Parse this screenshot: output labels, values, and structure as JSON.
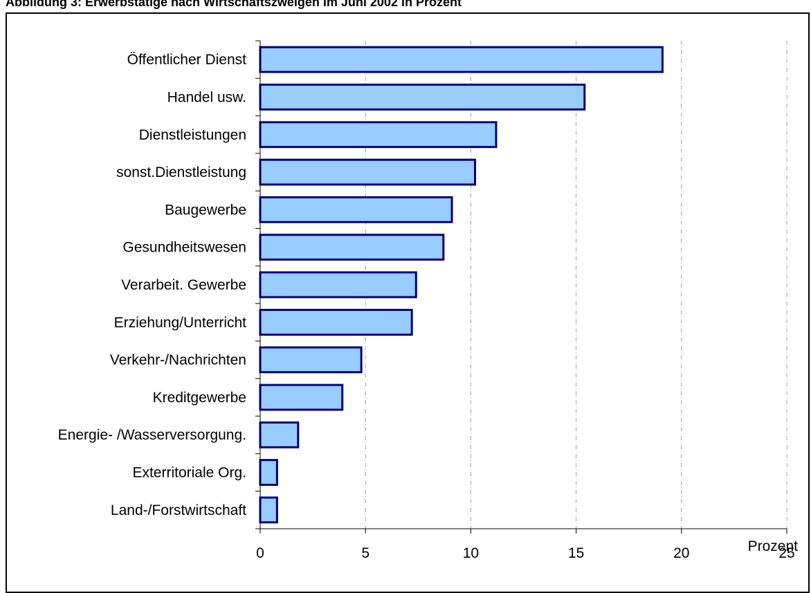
{
  "title": "Abbildung 3: Erwerbstätige nach Wirtschaftszweigen im Juni 2002 in Prozent",
  "chart_data": {
    "type": "bar",
    "orientation": "horizontal",
    "title": "Abbildung 3: Erwerbstätige nach Wirtschaftszweigen im Juni 2002 in Prozent",
    "xlabel": "Prozent",
    "ylabel": "",
    "categories": [
      "Öffentlicher Dienst",
      "Handel usw.",
      "Dienstleistungen",
      "sonst.Dienstleistung",
      "Baugewerbe",
      "Gesundheitswesen",
      "Verarbeit. Gewerbe",
      "Erziehung/Unterricht",
      "Verkehr-/Nachrichten",
      "Kreditgewerbe",
      "Energie- /Wasserversorgung.",
      "Exterritoriale Org.",
      "Land-/Forstwirtschaft"
    ],
    "values": [
      19.1,
      15.4,
      11.2,
      10.2,
      9.1,
      8.7,
      7.4,
      7.2,
      4.8,
      3.9,
      1.8,
      0.8,
      0.8
    ],
    "xlim": [
      0,
      25
    ],
    "xticks": [
      "0",
      "5",
      "10",
      "15",
      "20",
      "25"
    ],
    "grid": "vertical dashed",
    "colors": {
      "bar_fill": "#99ccff",
      "bar_stroke": "#000080",
      "grid": "#a0a0a0"
    }
  }
}
